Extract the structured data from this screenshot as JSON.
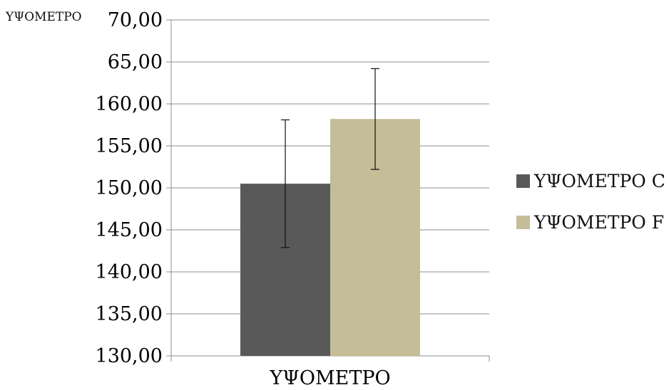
{
  "corner_label": "ΥΨΟΜΕΤΡΟ",
  "chart_data": {
    "type": "bar",
    "title": "",
    "xlabel": "",
    "ylabel": "",
    "categories": [
      "ΥΨΟΜΕΤΡΟ"
    ],
    "y_tick_labels": [
      "130,00",
      "135,00",
      "140,00",
      "145,00",
      "150,00",
      "155,00",
      "160,00",
      "65,00",
      "70,00"
    ],
    "ylim": [
      130,
      170
    ],
    "grid": true,
    "legend_position": "right",
    "series": [
      {
        "name": "ΥΨΟΜΕΤΡΟ C",
        "values": [
          150.5
        ],
        "error": [
          7.6
        ],
        "color": "#595959"
      },
      {
        "name": "ΥΨΟΜΕΤΡΟ F",
        "values": [
          158.2
        ],
        "error": [
          6.0
        ],
        "color": "#c4bd97"
      }
    ]
  }
}
